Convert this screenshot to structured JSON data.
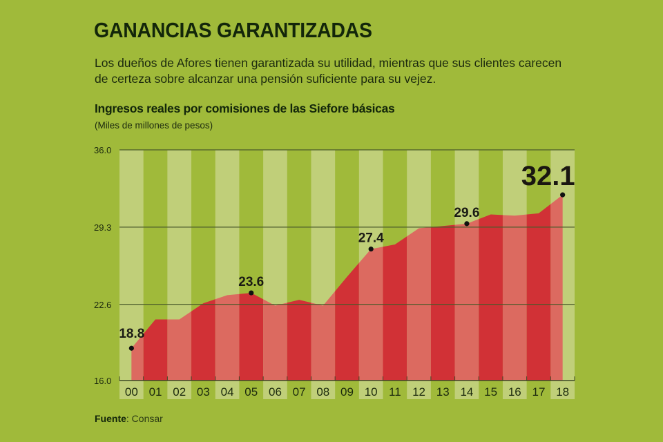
{
  "header": {
    "title": "GANANCIAS GARANTIZADAS",
    "subtitle": "Los dueños de Afores tienen garantizada su utilidad, mientras que sus clientes carecen de certeza sobre alcanzar una pensión suficiente para su vejez."
  },
  "colors": {
    "background": "#a0ba3a",
    "stripe_light": "#c0cf79",
    "area_light": "#dc6a60",
    "area_dark": "#d13136",
    "text_dark": "#13260a"
  },
  "footer": {
    "source_label": "Fuente",
    "source_value": ": Consar"
  },
  "chart_data": {
    "type": "area",
    "title": "Ingresos reales por comisiones de las Siefore básicas",
    "subtitle": "(Miles de millones de pesos)",
    "xlabel": "",
    "ylabel": "",
    "categories": [
      "00",
      "01",
      "02",
      "03",
      "04",
      "05",
      "06",
      "07",
      "08",
      "09",
      "10",
      "11",
      "12",
      "13",
      "14",
      "15",
      "16",
      "17",
      "18"
    ],
    "series": [
      {
        "name": "Ingresos reales por comisiones",
        "values": [
          18.8,
          21.3,
          21.3,
          22.7,
          23.4,
          23.6,
          22.5,
          23.0,
          22.5,
          25.0,
          27.4,
          27.8,
          29.2,
          29.4,
          29.6,
          30.4,
          30.3,
          30.5,
          32.1
        ]
      }
    ],
    "ylim": [
      16.0,
      36.0
    ],
    "yticks": [
      "16.0",
      "22.6",
      "29.3",
      "36.0"
    ],
    "ytick_values": [
      16.0,
      22.6,
      29.3,
      36.0
    ],
    "grid": true,
    "annotations": [
      {
        "category": "00",
        "label": "18.8",
        "big": false
      },
      {
        "category": "05",
        "label": "23.6",
        "big": false
      },
      {
        "category": "10",
        "label": "27.4",
        "big": false
      },
      {
        "category": "14",
        "label": "29.6",
        "big": false
      },
      {
        "category": "18",
        "label": "32.1",
        "big": true
      }
    ],
    "legend": "none"
  }
}
